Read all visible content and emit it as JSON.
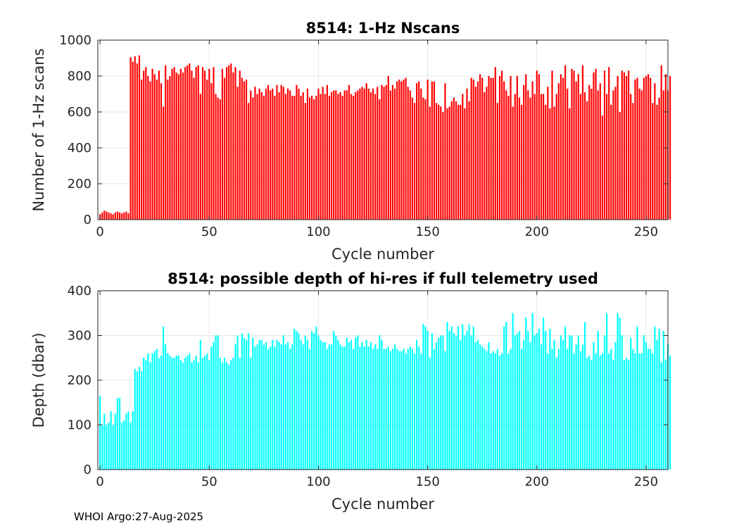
{
  "footer": "WHOI Argo:27-Aug-2025",
  "chart_data": [
    {
      "type": "bar",
      "title": "8514: 1-Hz Nscans",
      "xlabel": "Cycle number",
      "ylabel": "Number of 1-Hz scans",
      "xlim": [
        -1,
        260
      ],
      "ylim": [
        0,
        1000
      ],
      "xticks": [
        0,
        50,
        100,
        150,
        200,
        250
      ],
      "yticks": [
        0,
        200,
        400,
        600,
        800,
        1000
      ],
      "grid": true,
      "color": "#ff0000",
      "x_start": 0,
      "values": [
        30,
        40,
        50,
        45,
        40,
        35,
        30,
        40,
        45,
        40,
        35,
        40,
        45,
        35,
        905,
        880,
        910,
        870,
        915,
        780,
        830,
        850,
        800,
        770,
        840,
        810,
        780,
        830,
        760,
        630,
        860,
        780,
        800,
        840,
        850,
        820,
        810,
        840,
        820,
        850,
        860,
        870,
        830,
        790,
        850,
        860,
        700,
        850,
        830,
        780,
        840,
        760,
        850,
        700,
        680,
        670,
        840,
        790,
        850,
        860,
        870,
        820,
        850,
        740,
        830,
        790,
        770,
        780,
        650,
        720,
        680,
        740,
        700,
        730,
        710,
        690,
        730,
        750,
        720,
        730,
        690,
        750,
        710,
        750,
        740,
        700,
        730,
        720,
        690,
        690,
        750,
        730,
        690,
        710,
        650,
        730,
        680,
        690,
        670,
        690,
        730,
        700,
        740,
        700,
        750,
        690,
        710,
        720,
        720,
        700,
        710,
        690,
        720,
        720,
        750,
        700,
        690,
        710,
        720,
        730,
        740,
        730,
        760,
        730,
        710,
        730,
        700,
        740,
        670,
        750,
        740,
        750,
        800,
        720,
        750,
        730,
        770,
        780,
        770,
        780,
        790,
        740,
        720,
        680,
        650,
        760,
        770,
        730,
        680,
        670,
        780,
        630,
        770,
        770,
        650,
        640,
        630,
        600,
        760,
        620,
        630,
        660,
        680,
        660,
        640,
        640,
        700,
        620,
        730,
        660,
        790,
        780,
        740,
        770,
        810,
        790,
        710,
        740,
        800,
        790,
        790,
        850,
        650,
        800,
        830,
        770,
        720,
        690,
        800,
        630,
        700,
        800,
        680,
        640,
        750,
        810,
        720,
        680,
        770,
        700,
        830,
        810,
        700,
        700,
        640,
        740,
        620,
        830,
        630,
        700,
        760,
        810,
        790,
        860,
        730,
        620,
        840,
        830,
        770,
        810,
        700,
        860,
        710,
        660,
        750,
        730,
        820,
        840,
        720,
        760,
        580,
        830,
        700,
        850,
        640,
        720,
        740,
        800,
        600,
        830,
        820,
        800,
        830,
        700,
        650,
        780,
        790,
        730,
        720,
        790,
        800,
        810,
        790,
        650,
        760,
        640,
        680,
        860,
        720,
        810,
        720,
        800
      ]
    },
    {
      "type": "bar",
      "title": "8514: possible depth of hi-res if full telemetry used",
      "xlabel": "Cycle number",
      "ylabel": "Depth (dbar)",
      "xlim": [
        -1,
        260
      ],
      "ylim": [
        0,
        400
      ],
      "xticks": [
        0,
        50,
        100,
        150,
        200,
        250
      ],
      "yticks": [
        0,
        100,
        200,
        300,
        400
      ],
      "grid": true,
      "color": "#00ffff",
      "x_start": 0,
      "values": [
        165,
        100,
        125,
        100,
        105,
        130,
        100,
        125,
        160,
        160,
        105,
        110,
        125,
        130,
        105,
        130,
        225,
        220,
        230,
        220,
        250,
        245,
        260,
        240,
        260,
        265,
        270,
        250,
        255,
        320,
        280,
        260,
        255,
        250,
        250,
        255,
        255,
        245,
        240,
        250,
        255,
        260,
        240,
        245,
        255,
        240,
        290,
        250,
        255,
        260,
        245,
        275,
        285,
        300,
        300,
        250,
        240,
        250,
        240,
        235,
        245,
        250,
        280,
        300,
        250,
        305,
        295,
        290,
        305,
        250,
        295,
        275,
        280,
        290,
        290,
        280,
        285,
        270,
        275,
        290,
        275,
        290,
        285,
        280,
        300,
        280,
        285,
        270,
        280,
        315,
        310,
        305,
        290,
        280,
        300,
        290,
        270,
        310,
        305,
        320,
        300,
        290,
        285,
        285,
        270,
        280,
        280,
        310,
        300,
        290,
        280,
        275,
        275,
        295,
        285,
        290,
        270,
        295,
        300,
        275,
        285,
        275,
        290,
        275,
        285,
        270,
        280,
        270,
        300,
        290,
        270,
        270,
        275,
        265,
        270,
        280,
        270,
        265,
        265,
        270,
        260,
        270,
        275,
        270,
        260,
        290,
        275,
        260,
        325,
        320,
        310,
        250,
        305,
        270,
        285,
        295,
        300,
        300,
        265,
        330,
        310,
        320,
        305,
        300,
        320,
        290,
        325,
        300,
        310,
        325,
        300,
        320,
        285,
        290,
        280,
        275,
        270,
        265,
        285,
        260,
        265,
        260,
        270,
        255,
        260,
        320,
        330,
        260,
        270,
        350,
        300,
        305,
        310,
        270,
        290,
        340,
        310,
        285,
        350,
        300,
        305,
        315,
        280,
        340,
        310,
        260,
        315,
        270,
        290,
        250,
        270,
        300,
        290,
        320,
        270,
        300,
        300,
        260,
        280,
        300,
        265,
        280,
        330,
        250,
        255,
        245,
        285,
        260,
        310,
        255,
        260,
        300,
        350,
        260,
        270,
        245,
        285,
        350,
        340,
        300,
        245,
        250,
        245,
        295,
        270,
        260,
        320,
        260,
        260,
        300,
        285,
        270,
        270,
        260,
        320,
        290,
        315,
        240,
        310,
        245,
        280,
        255
      ]
    }
  ]
}
